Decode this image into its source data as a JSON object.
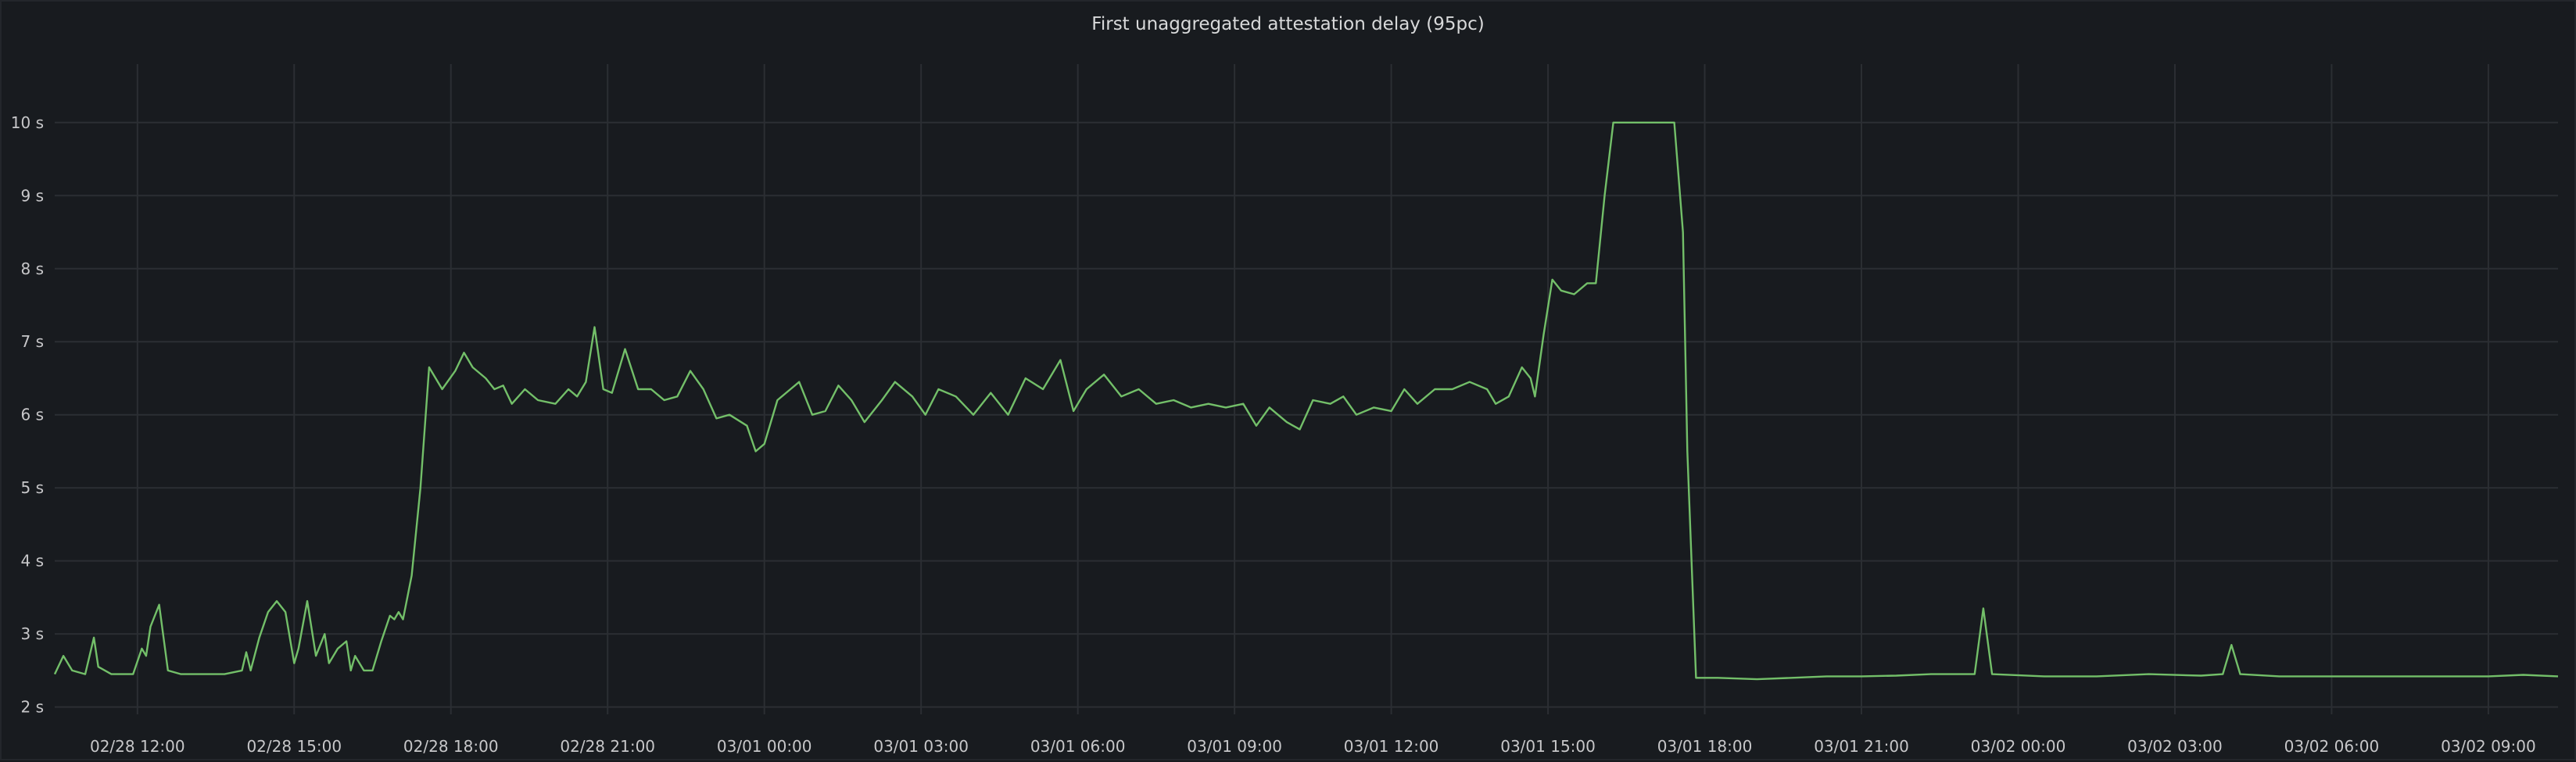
{
  "panel": {
    "title": "First unaggregated attestation delay (95pc)"
  },
  "chart_data": {
    "type": "line",
    "title": "First unaggregated attestation delay (95pc)",
    "xlabel": "",
    "ylabel": "",
    "y_unit": "s",
    "ylim": [
      1.9,
      10.8
    ],
    "xlim": [
      "02/28 10:25",
      "03/02 10:20"
    ],
    "grid": true,
    "legend": "none",
    "y_ticks": [
      {
        "value": 2,
        "label": "2 s"
      },
      {
        "value": 3,
        "label": "3 s"
      },
      {
        "value": 4,
        "label": "4 s"
      },
      {
        "value": 5,
        "label": "5 s"
      },
      {
        "value": 6,
        "label": "6 s"
      },
      {
        "value": 7,
        "label": "7 s"
      },
      {
        "value": 8,
        "label": "8 s"
      },
      {
        "value": 9,
        "label": "9 s"
      },
      {
        "value": 10,
        "label": "10 s"
      }
    ],
    "x_ticks": [
      {
        "value": "02/28 12:00",
        "label": "02/28 12:00"
      },
      {
        "value": "02/28 15:00",
        "label": "02/28 15:00"
      },
      {
        "value": "02/28 18:00",
        "label": "02/28 18:00"
      },
      {
        "value": "02/28 21:00",
        "label": "02/28 21:00"
      },
      {
        "value": "03/01 00:00",
        "label": "03/01 00:00"
      },
      {
        "value": "03/01 03:00",
        "label": "03/01 03:00"
      },
      {
        "value": "03/01 06:00",
        "label": "03/01 06:00"
      },
      {
        "value": "03/01 09:00",
        "label": "03/01 09:00"
      },
      {
        "value": "03/01 12:00",
        "label": "03/01 12:00"
      },
      {
        "value": "03/01 15:00",
        "label": "03/01 15:00"
      },
      {
        "value": "03/01 18:00",
        "label": "03/01 18:00"
      },
      {
        "value": "03/01 21:00",
        "label": "03/01 21:00"
      },
      {
        "value": "03/02 00:00",
        "label": "03/02 00:00"
      },
      {
        "value": "03/02 03:00",
        "label": "03/02 03:00"
      },
      {
        "value": "03/02 06:00",
        "label": "03/02 06:00"
      },
      {
        "value": "03/02 09:00",
        "label": "03/02 09:00"
      }
    ],
    "series": [
      {
        "color": "#73bf69",
        "points": [
          [
            "02/28 10:25",
            2.45
          ],
          [
            "02/28 10:35",
            2.7
          ],
          [
            "02/28 10:45",
            2.5
          ],
          [
            "02/28 11:00",
            2.45
          ],
          [
            "02/28 11:10",
            2.95
          ],
          [
            "02/28 11:15",
            2.55
          ],
          [
            "02/28 11:30",
            2.45
          ],
          [
            "02/28 11:55",
            2.45
          ],
          [
            "02/28 12:05",
            2.8
          ],
          [
            "02/28 12:10",
            2.7
          ],
          [
            "02/28 12:15",
            3.1
          ],
          [
            "02/28 12:25",
            3.4
          ],
          [
            "02/28 12:35",
            2.5
          ],
          [
            "02/28 12:50",
            2.45
          ],
          [
            "02/28 13:15",
            2.45
          ],
          [
            "02/28 13:40",
            2.45
          ],
          [
            "02/28 14:00",
            2.5
          ],
          [
            "02/28 14:05",
            2.75
          ],
          [
            "02/28 14:10",
            2.5
          ],
          [
            "02/28 14:20",
            2.95
          ],
          [
            "02/28 14:30",
            3.3
          ],
          [
            "02/28 14:40",
            3.45
          ],
          [
            "02/28 14:50",
            3.3
          ],
          [
            "02/28 15:00",
            2.6
          ],
          [
            "02/28 15:05",
            2.8
          ],
          [
            "02/28 15:15",
            3.45
          ],
          [
            "02/28 15:25",
            2.7
          ],
          [
            "02/28 15:35",
            3.0
          ],
          [
            "02/28 15:40",
            2.6
          ],
          [
            "02/28 15:50",
            2.8
          ],
          [
            "02/28 16:00",
            2.9
          ],
          [
            "02/28 16:05",
            2.5
          ],
          [
            "02/28 16:10",
            2.7
          ],
          [
            "02/28 16:20",
            2.5
          ],
          [
            "02/28 16:30",
            2.5
          ],
          [
            "02/28 16:40",
            2.9
          ],
          [
            "02/28 16:50",
            3.25
          ],
          [
            "02/28 16:55",
            3.2
          ],
          [
            "02/28 17:00",
            3.3
          ],
          [
            "02/28 17:05",
            3.2
          ],
          [
            "02/28 17:15",
            3.8
          ],
          [
            "02/28 17:25",
            5.0
          ],
          [
            "02/28 17:35",
            6.65
          ],
          [
            "02/28 17:50",
            6.35
          ],
          [
            "02/28 18:05",
            6.6
          ],
          [
            "02/28 18:15",
            6.85
          ],
          [
            "02/28 18:25",
            6.65
          ],
          [
            "02/28 18:40",
            6.5
          ],
          [
            "02/28 18:50",
            6.35
          ],
          [
            "02/28 19:00",
            6.4
          ],
          [
            "02/28 19:10",
            6.15
          ],
          [
            "02/28 19:25",
            6.35
          ],
          [
            "02/28 19:40",
            6.2
          ],
          [
            "02/28 20:00",
            6.15
          ],
          [
            "02/28 20:15",
            6.35
          ],
          [
            "02/28 20:25",
            6.25
          ],
          [
            "02/28 20:35",
            6.45
          ],
          [
            "02/28 20:45",
            7.2
          ],
          [
            "02/28 20:55",
            6.35
          ],
          [
            "02/28 21:05",
            6.3
          ],
          [
            "02/28 21:20",
            6.9
          ],
          [
            "02/28 21:35",
            6.35
          ],
          [
            "02/28 21:50",
            6.35
          ],
          [
            "02/28 22:05",
            6.2
          ],
          [
            "02/28 22:20",
            6.25
          ],
          [
            "02/28 22:35",
            6.6
          ],
          [
            "02/28 22:50",
            6.35
          ],
          [
            "02/28 23:05",
            5.95
          ],
          [
            "02/28 23:20",
            6.0
          ],
          [
            "02/28 23:40",
            5.85
          ],
          [
            "02/28 23:50",
            5.5
          ],
          [
            "03/01 00:00",
            5.6
          ],
          [
            "03/01 00:15",
            6.2
          ],
          [
            "03/01 00:30",
            6.35
          ],
          [
            "03/01 00:40",
            6.45
          ],
          [
            "03/01 00:55",
            6.0
          ],
          [
            "03/01 01:10",
            6.05
          ],
          [
            "03/01 01:25",
            6.4
          ],
          [
            "03/01 01:40",
            6.2
          ],
          [
            "03/01 01:55",
            5.9
          ],
          [
            "03/01 02:15",
            6.2
          ],
          [
            "03/01 02:30",
            6.45
          ],
          [
            "03/01 02:50",
            6.25
          ],
          [
            "03/01 03:05",
            6.0
          ],
          [
            "03/01 03:20",
            6.35
          ],
          [
            "03/01 03:40",
            6.25
          ],
          [
            "03/01 04:00",
            6.0
          ],
          [
            "03/01 04:20",
            6.3
          ],
          [
            "03/01 04:40",
            6.0
          ],
          [
            "03/01 05:00",
            6.5
          ],
          [
            "03/01 05:20",
            6.35
          ],
          [
            "03/01 05:40",
            6.75
          ],
          [
            "03/01 05:55",
            6.05
          ],
          [
            "03/01 06:10",
            6.35
          ],
          [
            "03/01 06:30",
            6.55
          ],
          [
            "03/01 06:50",
            6.25
          ],
          [
            "03/01 07:10",
            6.35
          ],
          [
            "03/01 07:30",
            6.15
          ],
          [
            "03/01 07:50",
            6.2
          ],
          [
            "03/01 08:10",
            6.1
          ],
          [
            "03/01 08:30",
            6.15
          ],
          [
            "03/01 08:50",
            6.1
          ],
          [
            "03/01 09:10",
            6.15
          ],
          [
            "03/01 09:25",
            5.85
          ],
          [
            "03/01 09:40",
            6.1
          ],
          [
            "03/01 10:00",
            5.9
          ],
          [
            "03/01 10:15",
            5.8
          ],
          [
            "03/01 10:30",
            6.2
          ],
          [
            "03/01 10:50",
            6.15
          ],
          [
            "03/01 11:05",
            6.25
          ],
          [
            "03/01 11:20",
            6.0
          ],
          [
            "03/01 11:40",
            6.1
          ],
          [
            "03/01 12:00",
            6.05
          ],
          [
            "03/01 12:15",
            6.35
          ],
          [
            "03/01 12:30",
            6.15
          ],
          [
            "03/01 12:50",
            6.35
          ],
          [
            "03/01 13:10",
            6.35
          ],
          [
            "03/01 13:30",
            6.45
          ],
          [
            "03/01 13:50",
            6.35
          ],
          [
            "03/01 14:00",
            6.15
          ],
          [
            "03/01 14:15",
            6.25
          ],
          [
            "03/01 14:30",
            6.65
          ],
          [
            "03/01 14:40",
            6.5
          ],
          [
            "03/01 14:45",
            6.25
          ],
          [
            "03/01 14:55",
            7.1
          ],
          [
            "03/01 15:05",
            7.85
          ],
          [
            "03/01 15:15",
            7.7
          ],
          [
            "03/01 15:30",
            7.65
          ],
          [
            "03/01 15:45",
            7.8
          ],
          [
            "03/01 15:55",
            7.8
          ],
          [
            "03/01 16:05",
            9.0
          ],
          [
            "03/01 16:15",
            10.0
          ],
          [
            "03/01 17:25",
            10.0
          ],
          [
            "03/01 17:35",
            8.5
          ],
          [
            "03/01 17:40",
            5.5
          ],
          [
            "03/01 17:50",
            2.4
          ],
          [
            "03/01 18:15",
            2.4
          ],
          [
            "03/01 19:00",
            2.38
          ],
          [
            "03/01 19:40",
            2.4
          ],
          [
            "03/01 20:20",
            2.42
          ],
          [
            "03/01 21:00",
            2.42
          ],
          [
            "03/01 21:40",
            2.43
          ],
          [
            "03/01 22:20",
            2.45
          ],
          [
            "03/01 23:10",
            2.45
          ],
          [
            "03/01 23:20",
            3.35
          ],
          [
            "03/01 23:30",
            2.45
          ],
          [
            "03/02 00:30",
            2.42
          ],
          [
            "03/02 01:30",
            2.42
          ],
          [
            "03/02 02:30",
            2.45
          ],
          [
            "03/02 03:30",
            2.43
          ],
          [
            "03/02 03:55",
            2.45
          ],
          [
            "03/02 04:05",
            2.85
          ],
          [
            "03/02 04:15",
            2.45
          ],
          [
            "03/02 05:00",
            2.42
          ],
          [
            "03/02 06:00",
            2.42
          ],
          [
            "03/02 07:00",
            2.42
          ],
          [
            "03/02 08:00",
            2.42
          ],
          [
            "03/02 09:00",
            2.42
          ],
          [
            "03/02 09:40",
            2.44
          ],
          [
            "03/02 10:20",
            2.42
          ]
        ]
      }
    ]
  }
}
